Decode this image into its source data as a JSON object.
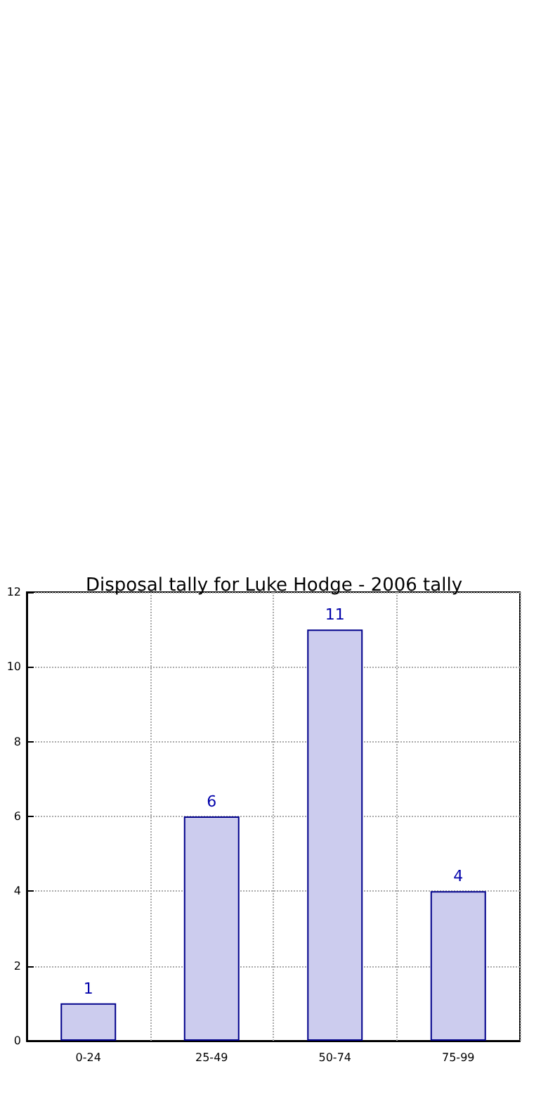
{
  "chart_data": {
    "type": "bar",
    "title": "Disposal tally for Luke Hodge - 2006 tally",
    "categories": [
      "0-24",
      "25-49",
      "50-74",
      "75-99"
    ],
    "values": [
      1,
      6,
      11,
      4
    ],
    "color": "#ccccee",
    "ylim": [
      0,
      12
    ],
    "yticks": [
      0,
      2,
      4,
      6,
      8,
      10,
      12
    ],
    "grid": true,
    "data_labels": true
  }
}
